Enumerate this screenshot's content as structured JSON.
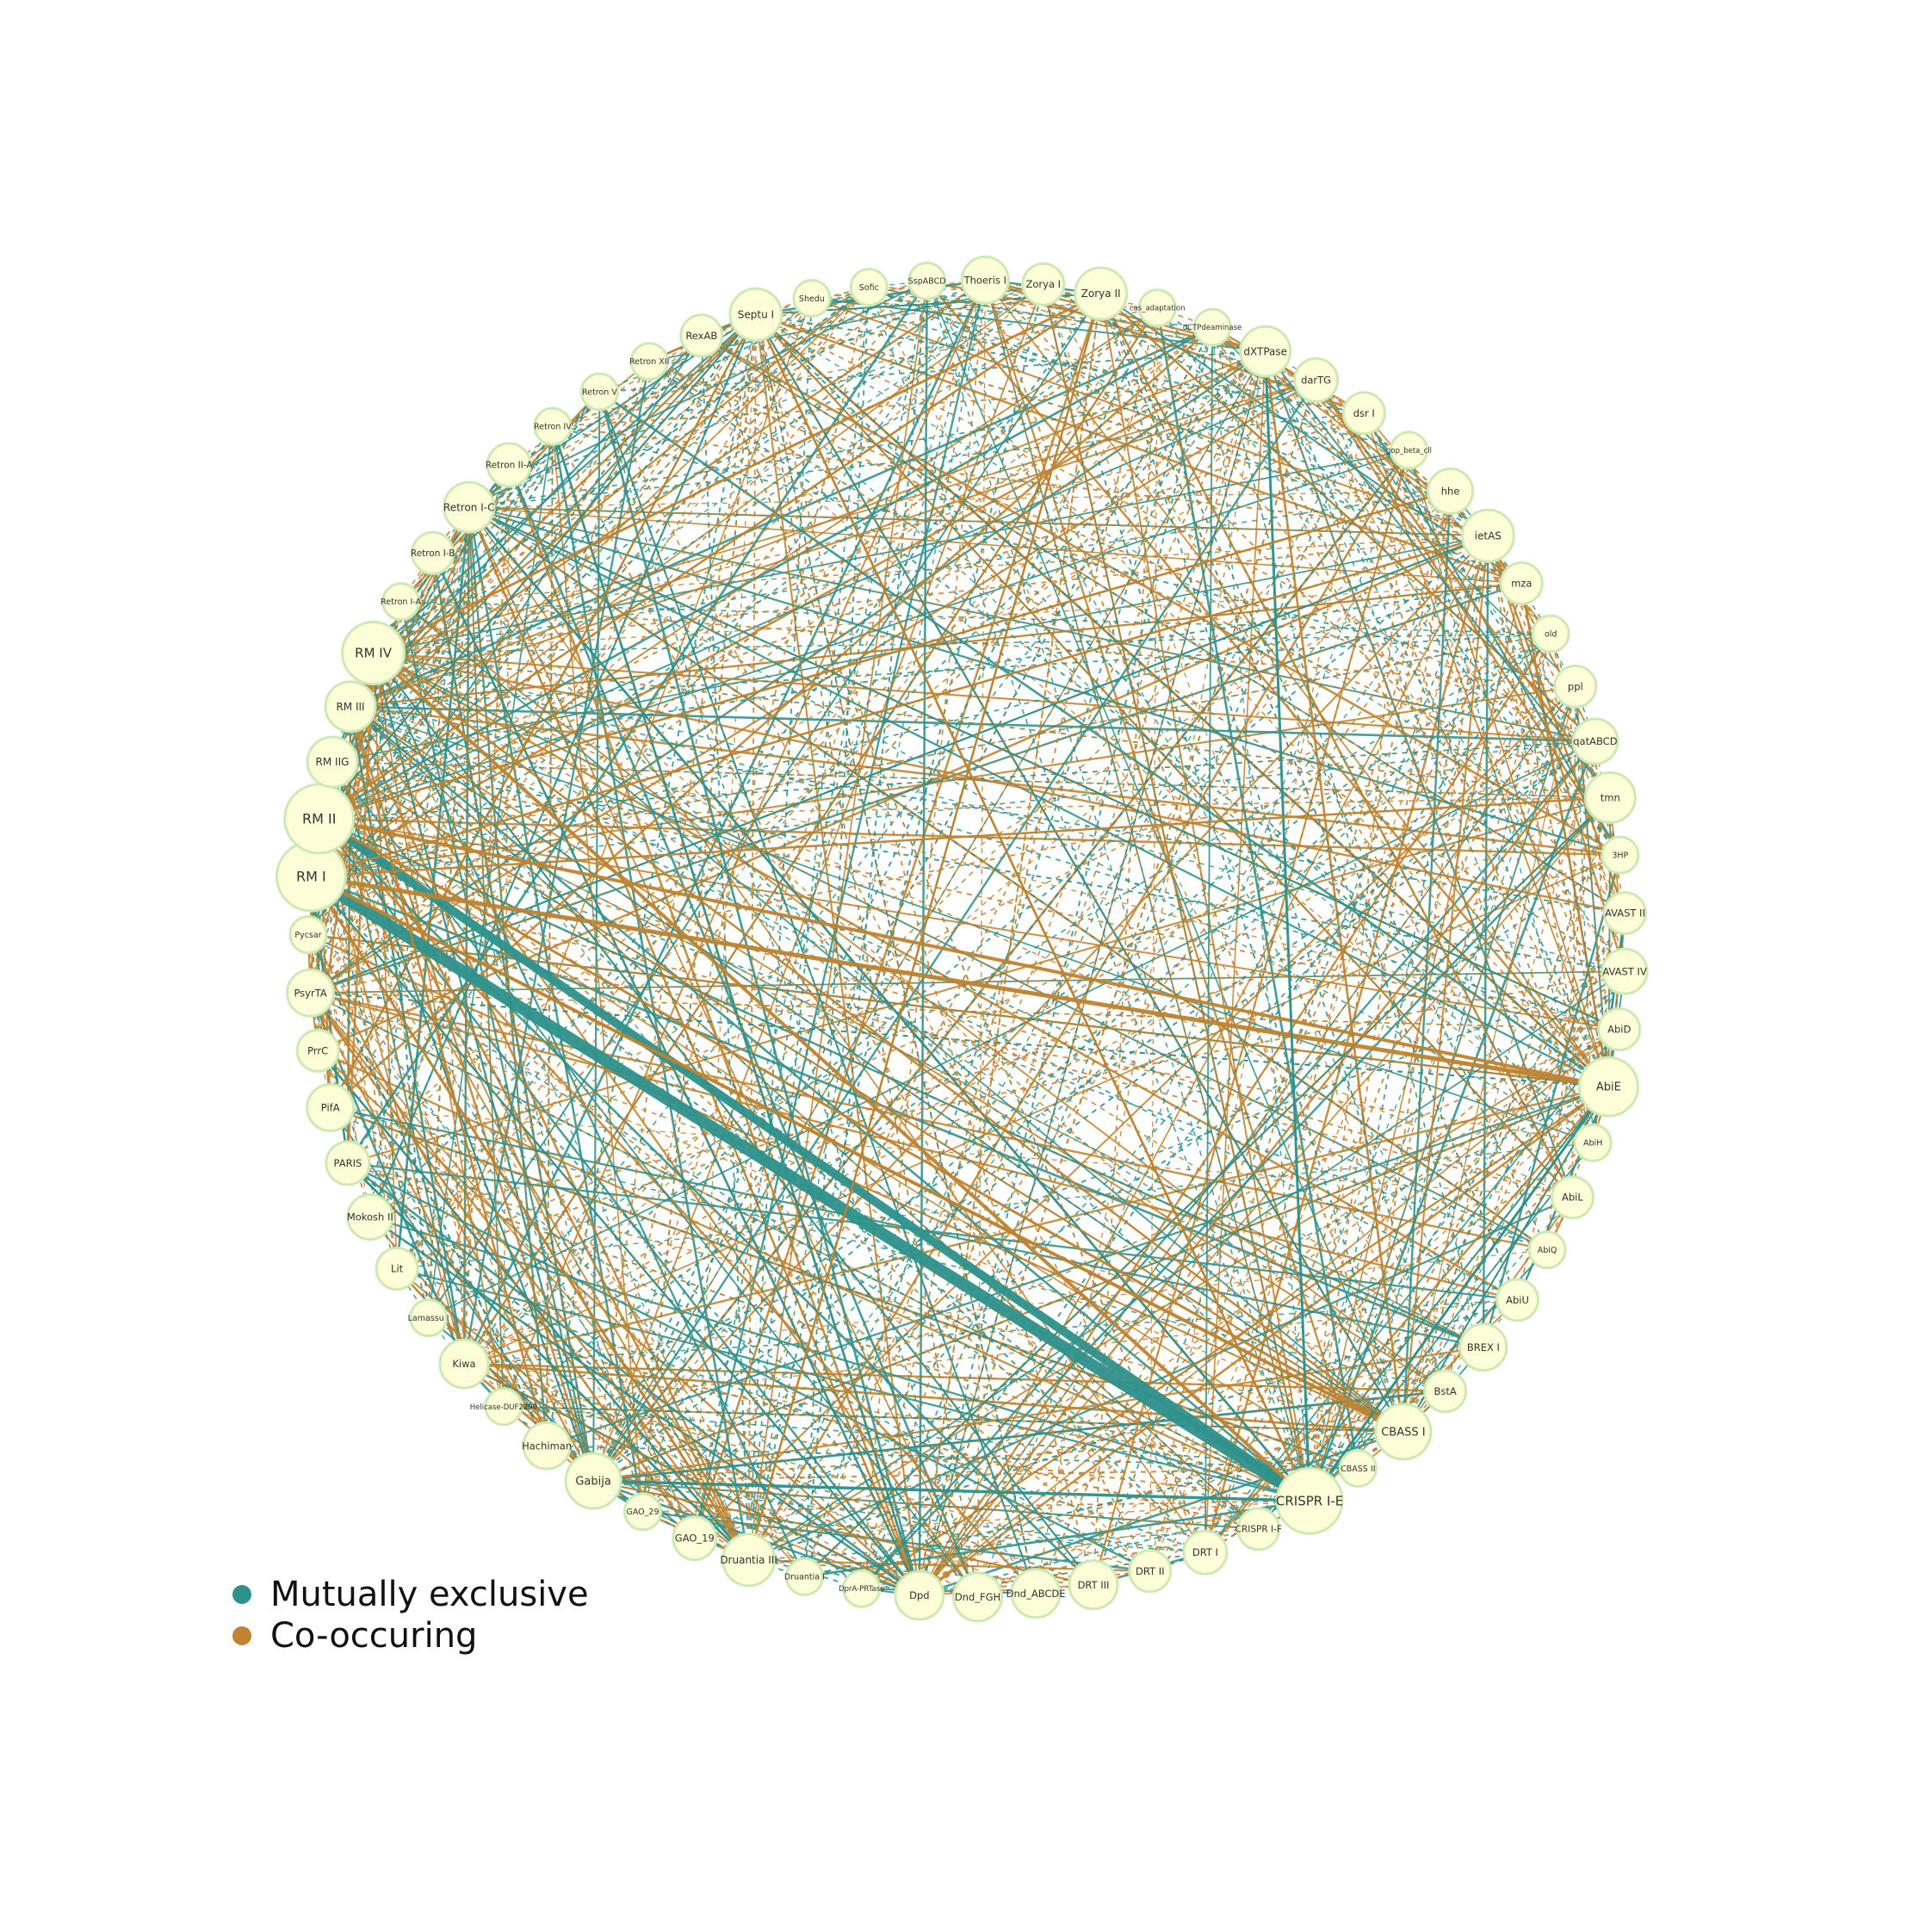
{
  "nodes": [
    "RM I",
    "RM II",
    "RM IIG",
    "RM III",
    "RM IV",
    "Retron I-A",
    "Retron I-B",
    "Retron I-C",
    "Retron II-A",
    "Retron IV",
    "Retron V",
    "Retron XII",
    "RexAB",
    "Septu I",
    "Shedu",
    "Sofic",
    "SspABCD",
    "Thoeris I",
    "Zorya I",
    "Zorya II",
    "cas_adaptation",
    "dCTPdeaminase",
    "dXTPase",
    "darTG",
    "dsr I",
    "gop_beta_cll",
    "hhe",
    "ietAS",
    "mza",
    "old",
    "ppl",
    "qatABCD",
    "tmn",
    "3HP",
    "AVAST II",
    "AVAST IV",
    "AbiD",
    "AbiE",
    "AbiH",
    "AbiL",
    "AbiQ",
    "AbiU",
    "BREX I",
    "BstA",
    "CBASS I",
    "CBASS II",
    "CRISPR I-E",
    "CRISPR I-F",
    "DRT I",
    "DRT II",
    "DRT III",
    "Dnd_ABCDE",
    "Dnd_FGH",
    "Dpd",
    "DprA-PRTase",
    "Druantia I",
    "Druantia III",
    "GAO_19",
    "GAO_29",
    "Gabija",
    "Hachiman",
    "Helicase-DUF2290",
    "Kiwa",
    "Lamassu I",
    "Lit",
    "Mokosh II",
    "PARIS",
    "PifA",
    "PrrC",
    "PsyrTA",
    "Pycsar"
  ],
  "legend": [
    {
      "label": "Mutually exclusive",
      "color": "#2e918c"
    },
    {
      "label": "Co-occuring",
      "color": "#c0832f"
    }
  ],
  "colors": {
    "node_fill": "#fdfdd8",
    "node_stroke": "#cde9b4",
    "mutually_exclusive": "#2e918c",
    "co_occuring": "#c0832f"
  }
}
